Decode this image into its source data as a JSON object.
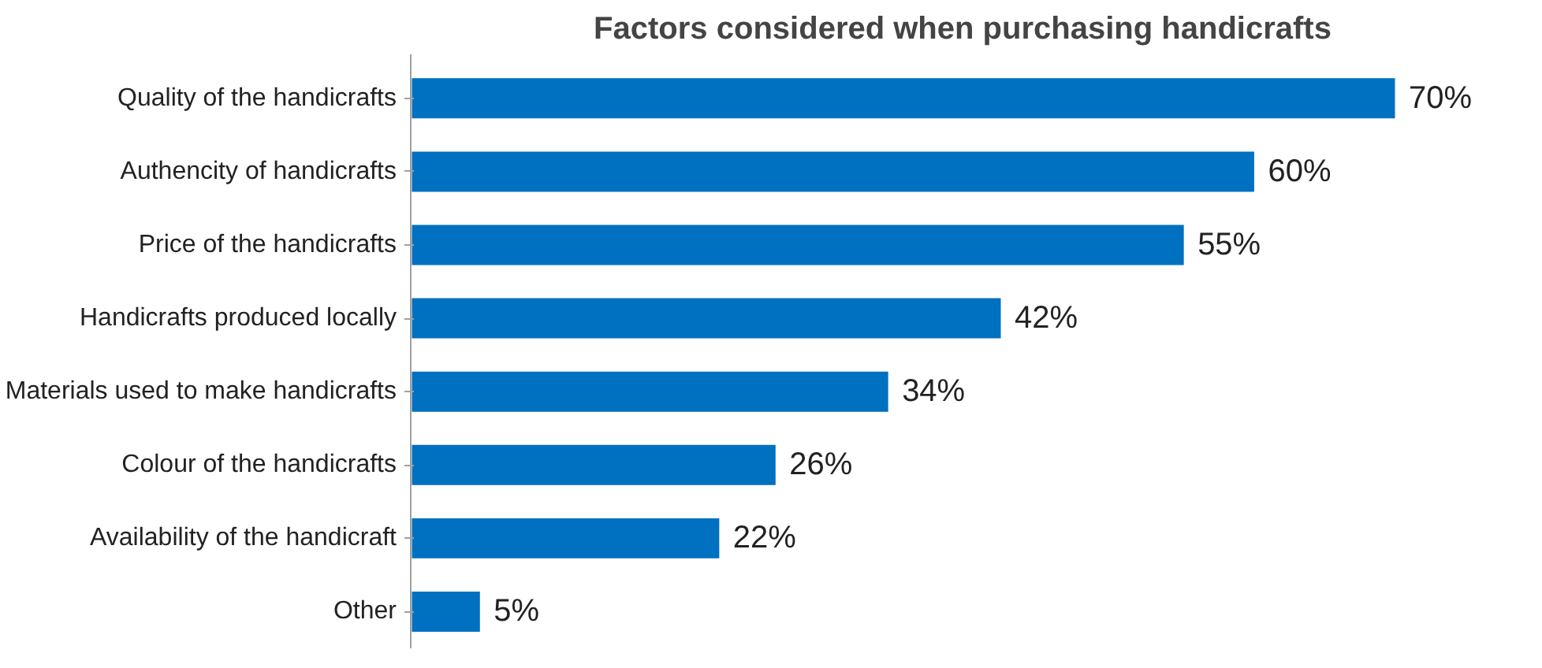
{
  "chart_data": {
    "type": "bar",
    "orientation": "horizontal",
    "title": "Factors considered when purchasing handicrafts",
    "categories": [
      "Quality of the handicrafts",
      "Authencity of handicrafts",
      "Price of the handicrafts",
      "Handicrafts produced locally",
      "Materials used to make handicrafts",
      "Colour of the handicrafts",
      "Availability of the handicraft",
      "Other"
    ],
    "values": [
      70,
      60,
      55,
      42,
      34,
      26,
      22,
      5
    ],
    "value_labels": [
      "70%",
      "60%",
      "55%",
      "42%",
      "34%",
      "26%",
      "22%",
      "5%"
    ],
    "color": "#0070c0",
    "grid": false
  }
}
